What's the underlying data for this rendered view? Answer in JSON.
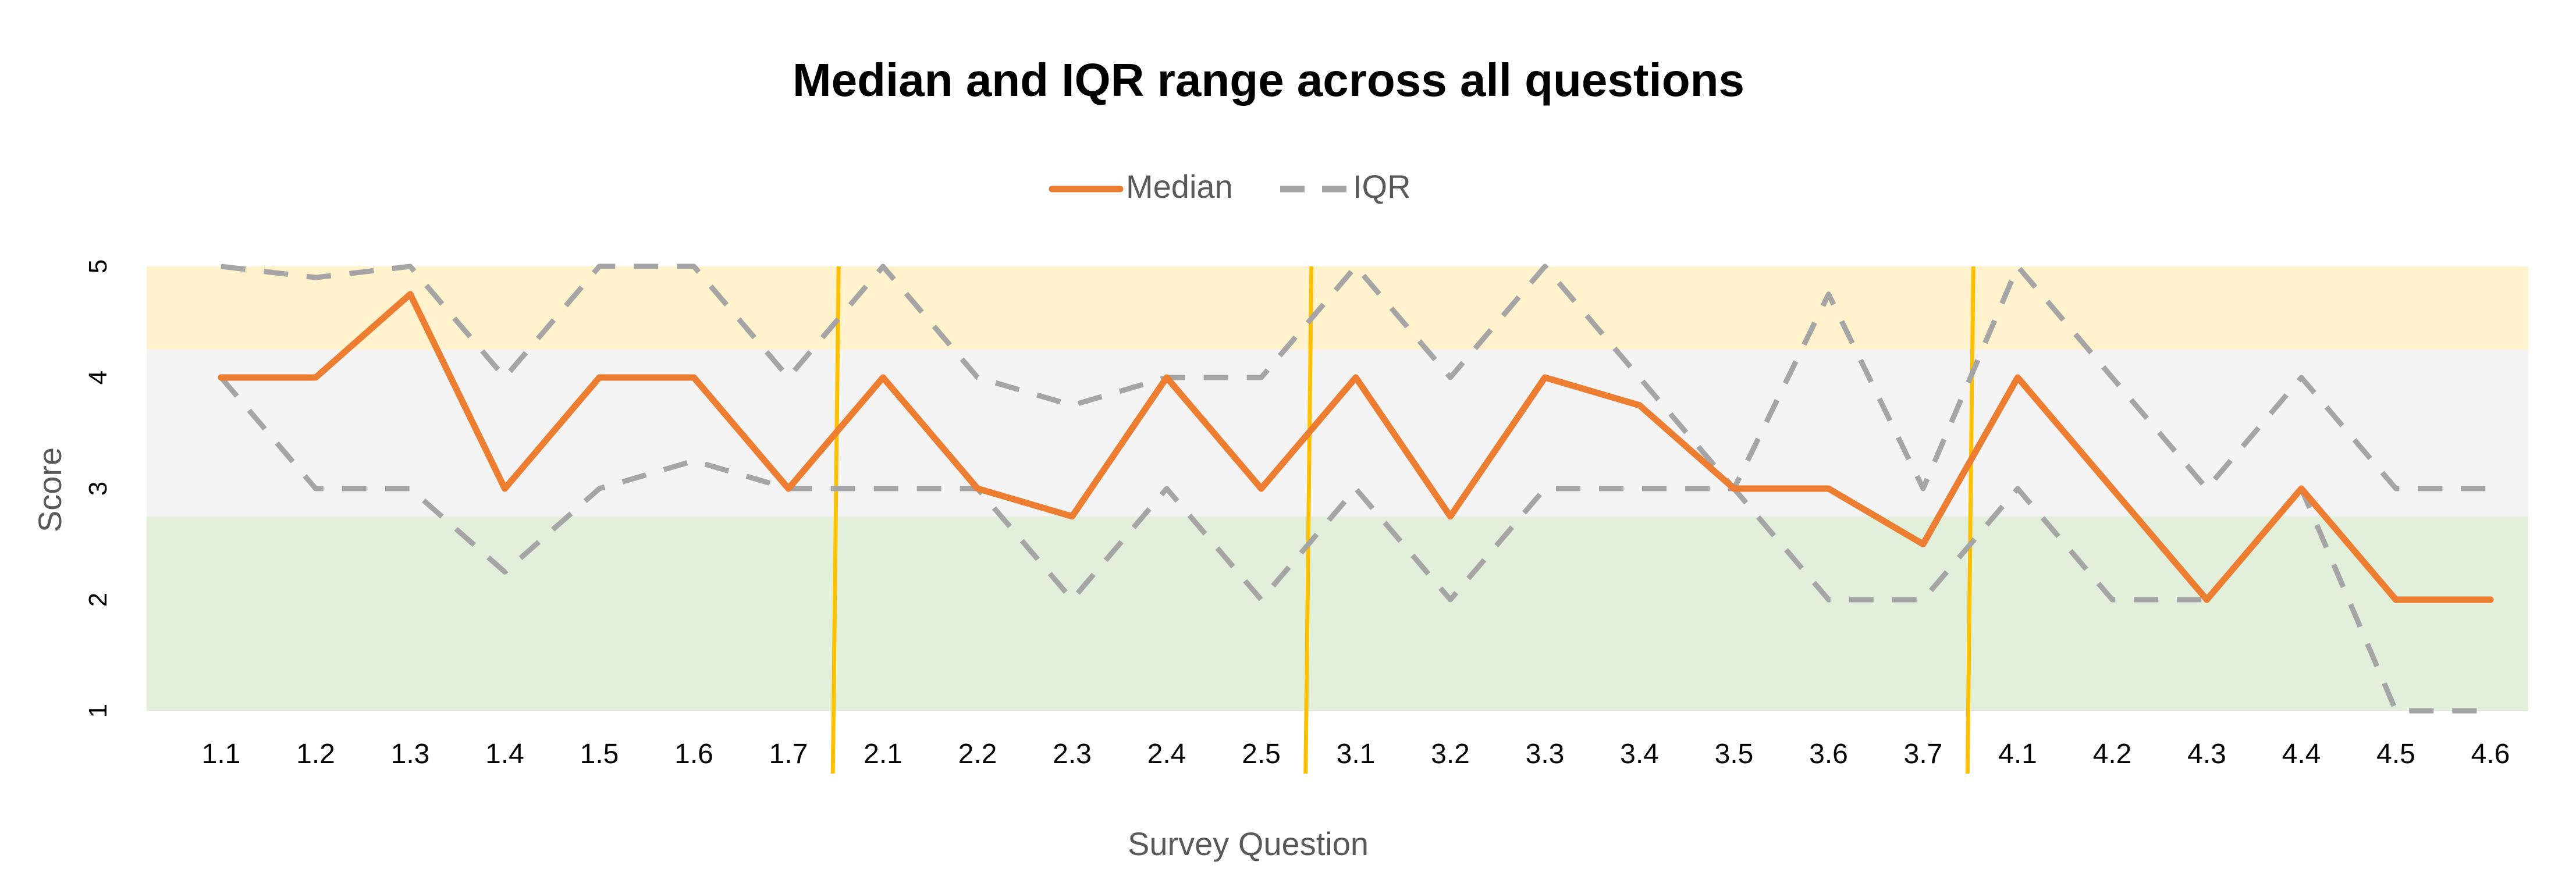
{
  "chart_data": {
    "type": "line",
    "title": "Median and IQR range across all questions",
    "xlabel": "Survey Question",
    "ylabel": "Score",
    "categories": [
      "1.1",
      "1.2",
      "1.3",
      "1.4",
      "1.5",
      "1.6",
      "1.7",
      "2.1",
      "2.2",
      "2.3",
      "2.4",
      "2.5",
      "3.1",
      "3.2",
      "3.3",
      "3.4",
      "3.5",
      "3.6",
      "3.7",
      "4.1",
      "4.2",
      "4.3",
      "4.4",
      "4.5",
      "4.6"
    ],
    "ylim": [
      1,
      5
    ],
    "yticks": [
      1,
      2,
      3,
      4,
      5
    ],
    "grid": false,
    "legend": {
      "position": "top-center",
      "entries": [
        "Median",
        "IQR"
      ]
    },
    "series": [
      {
        "name": "Median",
        "style": "solid",
        "color": "#ED7D31",
        "values": [
          4,
          4,
          4.75,
          3,
          4,
          4,
          3,
          4,
          3,
          2.75,
          4,
          3,
          4,
          2.75,
          4,
          3.75,
          3,
          3,
          2.5,
          4,
          3,
          2,
          3,
          2,
          2
        ]
      },
      {
        "name": "IQR",
        "style": "dashed",
        "color": "#A5A5A5",
        "role": "upper",
        "values": [
          5,
          4.9,
          5,
          4,
          5,
          5,
          4,
          5,
          4,
          3.75,
          4,
          4,
          5,
          4,
          5,
          4,
          3,
          4.75,
          3,
          5,
          4,
          3,
          4,
          3,
          3
        ]
      },
      {
        "name": "IQR",
        "style": "dashed",
        "color": "#A5A5A5",
        "role": "lower",
        "values": [
          4,
          3,
          3,
          2.25,
          3,
          3.25,
          3,
          3,
          3,
          2,
          3,
          2,
          3,
          2,
          3,
          3,
          3,
          2,
          2,
          3,
          2,
          2,
          3,
          1,
          1
        ]
      }
    ],
    "bands": [
      {
        "from": 4.25,
        "to": 5,
        "color": "#FFF2CC"
      },
      {
        "from": 2.75,
        "to": 4.25,
        "color": "#F4F4F4"
      },
      {
        "from": 1,
        "to": 2.75,
        "color": "#E2EFDA"
      }
    ],
    "section_dividers": {
      "color": "#FFC000",
      "after_categories": [
        "1.7",
        "2.5",
        "3.7"
      ]
    }
  }
}
